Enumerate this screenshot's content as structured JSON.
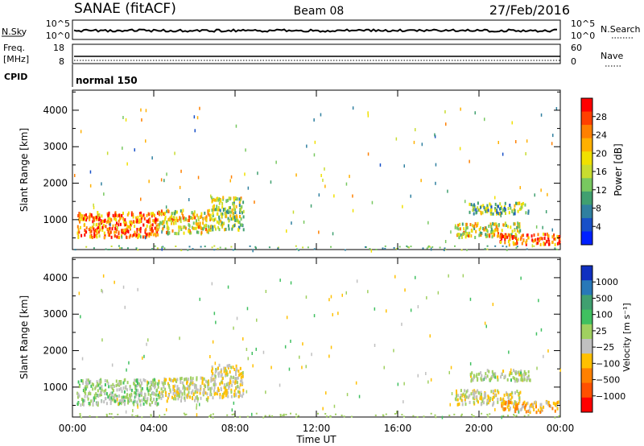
{
  "header": {
    "station": "SANAE (fitACF)",
    "beam": "Beam 08",
    "date": "27/Feb/2016"
  },
  "panels": {
    "sky": {
      "label": "N.Sky",
      "left_ticks": [
        "10^5",
        "10^0"
      ],
      "right_ticks": [
        "10^5",
        "10^0"
      ],
      "right_label": "N.Search"
    },
    "freq": {
      "label_top": "Freq.",
      "label_unit": "[MHz]",
      "left_ticks": [
        "18",
        "8"
      ],
      "right_ticks": [
        "60",
        "0"
      ],
      "right_label": "Nave"
    },
    "cpid": {
      "label": "CPID",
      "mode": "normal 150"
    }
  },
  "power_colorbar": {
    "label": "Power [dB]",
    "ticks": [
      "28",
      "24",
      "20",
      "16",
      "12",
      "8",
      "4"
    ],
    "colors": [
      "#ff0000",
      "#ff4000",
      "#ff8000",
      "#ffb000",
      "#f0e000",
      "#c8dc30",
      "#78c860",
      "#40a070",
      "#3080a0",
      "#1850c8",
      "#0020ff"
    ]
  },
  "velocity_colorbar": {
    "label": "Velocity [m s⁻¹]",
    "ticks": [
      "1000",
      "500",
      "100",
      "25",
      "−25",
      "−100",
      "−500",
      "−1000"
    ],
    "colors": [
      "#1030c0",
      "#2878b8",
      "#40a070",
      "#40c060",
      "#a0d060",
      "#c0c0c0",
      "#ffc000",
      "#ff8000",
      "#ff5000",
      "#ff0000"
    ]
  },
  "chart_data": [
    {
      "type": "heatmap",
      "title": "Power",
      "ylabel": "Slant Range [km]",
      "ylim": [
        180,
        4550
      ],
      "yticks": [
        1000,
        2000,
        3000,
        4000
      ],
      "xlim": [
        0,
        24
      ],
      "xticks": [
        0,
        4,
        8,
        12,
        16,
        20,
        24
      ],
      "colorbar_range": [
        0,
        30
      ],
      "grid": false,
      "regions": [
        {
          "t0": 0.2,
          "t1": 4.2,
          "r0": 550,
          "r1": 1250,
          "value": 24
        },
        {
          "t0": 4.2,
          "t1": 6.8,
          "r0": 650,
          "r1": 1300,
          "value": 18
        },
        {
          "t0": 6.8,
          "t1": 8.4,
          "r0": 750,
          "r1": 1650,
          "value": 14
        },
        {
          "t0": 18.8,
          "t1": 22.0,
          "r0": 550,
          "r1": 950,
          "value": 17
        },
        {
          "t0": 21.0,
          "t1": 24.0,
          "r0": 350,
          "r1": 650,
          "value": 25
        },
        {
          "t0": 19.5,
          "t1": 22.5,
          "r0": 1200,
          "r1": 1500,
          "value": 12
        }
      ]
    },
    {
      "type": "heatmap",
      "title": "Velocity",
      "ylabel": "Slant Range [km]",
      "ylim": [
        180,
        4550
      ],
      "yticks": [
        1000,
        2000,
        3000,
        4000
      ],
      "xlim": [
        0,
        24
      ],
      "xticks": [
        0,
        4,
        8,
        12,
        16,
        20,
        24
      ],
      "colorbar_range": [
        -1000,
        1000
      ],
      "grid": false,
      "regions": [
        {
          "t0": 0.2,
          "t1": 4.2,
          "r0": 550,
          "r1": 1250,
          "value": 50
        },
        {
          "t0": 4.2,
          "t1": 6.8,
          "r0": 650,
          "r1": 1300,
          "value": -80
        },
        {
          "t0": 6.8,
          "t1": 8.4,
          "r0": 750,
          "r1": 1650,
          "value": -150
        },
        {
          "t0": 18.8,
          "t1": 22.0,
          "r0": 550,
          "r1": 950,
          "value": -150
        },
        {
          "t0": 21.0,
          "t1": 24.0,
          "r0": 350,
          "r1": 650,
          "value": -300
        },
        {
          "t0": 19.5,
          "t1": 22.5,
          "r0": 1200,
          "r1": 1500,
          "value": 5
        }
      ]
    }
  ],
  "xaxis": {
    "ticklabels": [
      "00:00",
      "04:00",
      "08:00",
      "12:00",
      "16:00",
      "20:00",
      "00:00"
    ],
    "label": "Time UT"
  }
}
